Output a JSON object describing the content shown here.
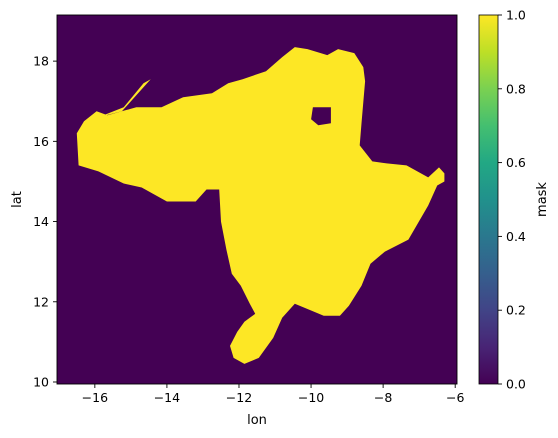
{
  "chart_data": {
    "type": "heatmap",
    "xlabel": "lon",
    "ylabel": "lat",
    "colorbar_label": "mask",
    "colormap": "viridis",
    "colors": {
      "zero": "#440154",
      "one": "#fde725"
    },
    "xlim": [
      -17.05,
      -5.95
    ],
    "ylim": [
      9.95,
      19.15
    ],
    "xticks": [
      -16,
      -14,
      -12,
      -10,
      -8,
      -6
    ],
    "xtick_labels": [
      "−16",
      "−14",
      "−12",
      "−10",
      "−8",
      "−6"
    ],
    "yticks": [
      10,
      12,
      14,
      16,
      18
    ],
    "yticks_labels": [
      "10",
      "12",
      "14",
      "16",
      "18"
    ],
    "colorbar_range": [
      0.0,
      1.0
    ],
    "colorbar_ticks": [
      0.0,
      0.2,
      0.4,
      0.6,
      0.8,
      1.0
    ],
    "colorbar_tick_labels": [
      "0.0",
      "0.2",
      "0.4",
      "0.6",
      "0.8",
      "1.0"
    ],
    "mask_value_1_region": {
      "polygon_lon_lat": [
        [
          -16.5,
          16.2
        ],
        [
          -16.45,
          15.4
        ],
        [
          -15.9,
          15.25
        ],
        [
          -15.2,
          14.95
        ],
        [
          -14.7,
          14.85
        ],
        [
          -14.0,
          14.5
        ],
        [
          -13.2,
          14.5
        ],
        [
          -12.9,
          14.8
        ],
        [
          -12.55,
          14.8
        ],
        [
          -12.5,
          14.0
        ],
        [
          -12.35,
          13.3
        ],
        [
          -12.2,
          12.7
        ],
        [
          -11.95,
          12.4
        ],
        [
          -11.7,
          11.95
        ],
        [
          -11.55,
          11.7
        ],
        [
          -11.7,
          11.6
        ],
        [
          -11.85,
          11.5
        ],
        [
          -12.05,
          11.25
        ],
        [
          -12.25,
          10.9
        ],
        [
          -12.15,
          10.6
        ],
        [
          -11.85,
          10.45
        ],
        [
          -11.45,
          10.6
        ],
        [
          -11.05,
          11.1
        ],
        [
          -10.8,
          11.6
        ],
        [
          -10.45,
          11.95
        ],
        [
          -10.05,
          11.8
        ],
        [
          -9.65,
          11.65
        ],
        [
          -9.2,
          11.65
        ],
        [
          -8.95,
          11.9
        ],
        [
          -8.6,
          12.4
        ],
        [
          -8.35,
          12.95
        ],
        [
          -7.95,
          13.25
        ],
        [
          -7.3,
          13.55
        ],
        [
          -6.75,
          14.4
        ],
        [
          -6.5,
          14.9
        ],
        [
          -6.3,
          15.0
        ],
        [
          -6.3,
          15.2
        ],
        [
          -6.45,
          15.35
        ],
        [
          -6.75,
          15.1
        ],
        [
          -7.35,
          15.4
        ],
        [
          -7.9,
          15.45
        ],
        [
          -8.3,
          15.5
        ],
        [
          -8.65,
          15.9
        ],
        [
          -8.6,
          16.45
        ],
        [
          -8.5,
          17.5
        ],
        [
          -8.55,
          17.85
        ],
        [
          -8.8,
          18.2
        ],
        [
          -9.25,
          18.3
        ],
        [
          -9.55,
          18.15
        ],
        [
          -10.1,
          18.3
        ],
        [
          -10.45,
          18.35
        ],
        [
          -10.8,
          18.1
        ],
        [
          -11.25,
          17.75
        ],
        [
          -11.9,
          17.55
        ],
        [
          -12.3,
          17.45
        ],
        [
          -12.75,
          17.2
        ],
        [
          -13.55,
          17.1
        ],
        [
          -14.15,
          16.85
        ],
        [
          -14.85,
          16.85
        ],
        [
          -15.65,
          16.65
        ],
        [
          -15.95,
          16.75
        ],
        [
          -16.3,
          16.5
        ]
      ],
      "peninsula_lon_lat": [
        [
          -15.9,
          16.6
        ],
        [
          -15.2,
          16.85
        ],
        [
          -14.65,
          17.45
        ],
        [
          -14.45,
          17.55
        ],
        [
          -14.75,
          17.25
        ],
        [
          -15.25,
          16.75
        ]
      ],
      "hole_lon_lat": [
        [
          -9.95,
          16.85
        ],
        [
          -9.45,
          16.85
        ],
        [
          -9.45,
          16.45
        ],
        [
          -9.8,
          16.4
        ],
        [
          -10.0,
          16.55
        ]
      ]
    }
  }
}
